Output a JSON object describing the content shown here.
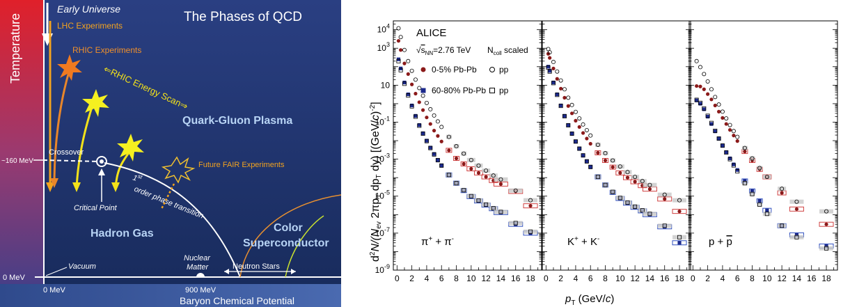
{
  "phase_diagram": {
    "title": "The Phases of QCD",
    "y_axis_label": "Temperature",
    "x_axis_label": "Baryon Chemical Potential",
    "labels": {
      "early_universe": "Early Universe",
      "lhc": "LHC Experiments",
      "rhic": "RHIC Experiments",
      "rhic_scan": "⇐RHIC Energy Scan⇒",
      "qgp": "Quark-Gluon Plasma",
      "temp_160": "~160 MeV",
      "crossover": "Crossover",
      "fair": "Future FAIR Experiments",
      "first_order_sup": "st",
      "first_order_a": "1",
      "first_order_b": "order phase transition",
      "critical_point": "Critical Point",
      "hadron_gas": "Hadron Gas",
      "color": "Color",
      "superconductor": "Superconductor",
      "nuclear": "Nuclear",
      "matter": "Matter",
      "neutron_stars": "Neutron Stars",
      "vacuum": "Vacuum",
      "zero_t": "0 MeV",
      "zero_mu": "0 MeV",
      "mu_900": "900 MeV"
    },
    "colors": {
      "lhc_arrow": "#f2a31f",
      "rhic_arrow": "#e8862a",
      "scan_arrow": "#f3e21a",
      "bg_top": "#2a3f82",
      "bg_bottom": "#17224a",
      "text_light": "#c8dcf5",
      "orange_text": "#f0902a"
    }
  },
  "chart_data": [
    {
      "type": "scatter",
      "panel_label_a": "π",
      "panel_label_a_sup": "+",
      "panel_label_mid": " + π",
      "panel_label_b_sup": "-",
      "ylabel": "d²N/(Nev 2πpT dpT dy) [(GeV/c)⁻²]",
      "xlabel": "pT (GeV/c)",
      "ylim": [
        1e-09,
        30000
      ],
      "xlim": [
        -0.5,
        19.5
      ],
      "yscale": "log",
      "series": [
        {
          "name": "0-5% Pb-Pb",
          "x": [
            0.2,
            0.5,
            1,
            1.5,
            2,
            2.5,
            3,
            3.5,
            4,
            4.5,
            5,
            5.5,
            6,
            7,
            8,
            9,
            10,
            11,
            12,
            13,
            14,
            16,
            18
          ],
          "y": [
            2500,
            800,
            150,
            40,
            11,
            3.5,
            1.2,
            0.45,
            0.18,
            0.08,
            0.035,
            0.018,
            0.009,
            0.003,
            0.0011,
            0.00055,
            0.0003,
            0.00018,
            0.00011,
            7e-05,
            4.5e-05,
            1.8e-05,
            3e-06
          ]
        },
        {
          "name": "60-80% Pb-Pb",
          "x": [
            0.2,
            0.5,
            1,
            1.5,
            2,
            2.5,
            3,
            3.5,
            4,
            4.5,
            5,
            5.5,
            6,
            7,
            8,
            9,
            10,
            11,
            12,
            13,
            14,
            16,
            18
          ],
          "y": [
            250,
            80,
            14,
            3.2,
            0.8,
            0.22,
            0.07,
            0.025,
            0.01,
            0.0042,
            0.0019,
            0.0009,
            0.00045,
            0.00014,
            5e-05,
            2e-05,
            9.5e-06,
            5.5e-06,
            3.3e-06,
            2.1e-06,
            1.3e-06,
            3e-07,
            1e-07
          ]
        },
        {
          "name": "pp 0-5%",
          "x": [
            0.2,
            0.5,
            1,
            1.5,
            2,
            2.5,
            3,
            3.5,
            4,
            4.5,
            5,
            5.5,
            6,
            7,
            8,
            9,
            10,
            11,
            12,
            13,
            14,
            16,
            18
          ],
          "y": [
            12000,
            4000,
            800,
            200,
            60,
            20,
            7,
            2.7,
            1.1,
            0.5,
            0.23,
            0.11,
            0.055,
            0.016,
            0.005,
            0.002,
            0.0009,
            0.00045,
            0.00024,
            0.00013,
            8e-05,
            2e-05,
            6e-06
          ]
        },
        {
          "name": "pp 60-80%",
          "x": [
            0.2,
            0.5,
            1,
            1.5,
            2,
            2.5,
            3,
            3.5,
            4,
            4.5,
            5,
            5.5,
            6,
            7,
            8,
            9,
            10,
            11,
            12,
            13,
            14,
            16,
            18
          ],
          "y": [
            200,
            65,
            12,
            2.8,
            0.72,
            0.2,
            0.065,
            0.024,
            0.0095,
            0.004,
            0.0018,
            0.00088,
            0.00045,
            0.00014,
            5e-05,
            2.1e-05,
            1e-05,
            5.8e-06,
            3.5e-06,
            2.2e-06,
            1.4e-06,
            3.5e-07,
            1.2e-07
          ]
        }
      ]
    },
    {
      "type": "scatter",
      "panel_label_a": "K",
      "panel_label_a_sup": "+",
      "panel_label_mid": " + K",
      "panel_label_b_sup": "-",
      "series": [
        {
          "name": "0-5% Pb-Pb",
          "x": [
            0.3,
            0.5,
            1,
            1.5,
            2,
            2.5,
            3,
            3.5,
            4,
            4.5,
            5,
            5.5,
            6,
            7,
            8,
            9,
            10,
            11,
            12,
            13,
            14,
            16,
            18
          ],
          "y": [
            500,
            300,
            80,
            22,
            6.5,
            2.1,
            0.75,
            0.3,
            0.12,
            0.055,
            0.026,
            0.013,
            0.0068,
            0.0022,
            0.00085,
            0.00037,
            0.00018,
            0.0001,
            6e-05,
            3.7e-05,
            2.4e-05,
            7e-06,
            1.5e-06
          ]
        },
        {
          "name": "60-80% Pb-Pb",
          "x": [
            0.3,
            0.5,
            1,
            1.5,
            2,
            2.5,
            3,
            3.5,
            4,
            4.5,
            5,
            5.5,
            6,
            7,
            8,
            9,
            10,
            11,
            12,
            13,
            14,
            16,
            18
          ],
          "y": [
            100,
            60,
            14,
            3.2,
            0.8,
            0.22,
            0.07,
            0.024,
            0.009,
            0.0037,
            0.0016,
            0.00075,
            0.00037,
            0.00011,
            4e-05,
            1.6e-05,
            7.5e-06,
            4.2e-06,
            2.5e-06,
            1.6e-06,
            1e-06,
            2.2e-07,
            3e-08
          ]
        },
        {
          "name": "pp 0-5%",
          "x": [
            0.3,
            0.5,
            1,
            1.5,
            2,
            2.5,
            3,
            3.5,
            4,
            4.5,
            5,
            5.5,
            6,
            7,
            8,
            9,
            10,
            11,
            12,
            13,
            14,
            16,
            18
          ],
          "y": [
            900,
            600,
            180,
            55,
            18,
            6,
            2.1,
            0.85,
            0.36,
            0.16,
            0.075,
            0.037,
            0.019,
            0.006,
            0.0021,
            0.00085,
            0.0004,
            0.0002,
            0.00011,
            6.5e-05,
            4e-05,
            1.2e-05,
            6e-06
          ]
        },
        {
          "name": "pp 60-80%",
          "x": [
            0.3,
            0.5,
            1,
            1.5,
            2,
            2.5,
            3,
            3.5,
            4,
            4.5,
            5,
            5.5,
            6,
            7,
            8,
            9,
            10,
            11,
            12,
            13,
            14,
            16,
            18
          ],
          "y": [
            90,
            55,
            13,
            3,
            0.76,
            0.21,
            0.068,
            0.024,
            0.009,
            0.0037,
            0.0016,
            0.00076,
            0.00038,
            0.00011,
            4e-05,
            1.7e-05,
            8e-06,
            4.5e-06,
            2.7e-06,
            1.7e-06,
            1.1e-06,
            2.5e-07,
            6e-08
          ]
        }
      ]
    },
    {
      "type": "scatter",
      "panel_label_a": "p + ",
      "panel_label_b": "p",
      "series": [
        {
          "name": "0-5% Pb-Pb",
          "x": [
            0.5,
            1,
            1.5,
            2,
            2.5,
            3,
            3.5,
            4,
            4.5,
            5,
            5.5,
            6,
            7,
            8,
            9,
            10,
            12,
            14,
            18
          ],
          "y": [
            9,
            8.5,
            6,
            3.3,
            1.7,
            0.8,
            0.37,
            0.17,
            0.08,
            0.038,
            0.019,
            0.0095,
            0.0026,
            0.00085,
            0.00028,
            0.00011,
            1.5e-05,
            2e-06,
            3e-07
          ]
        },
        {
          "name": "60-80% Pb-Pb",
          "x": [
            0.5,
            1,
            1.5,
            2,
            2.5,
            3,
            3.5,
            4,
            4.5,
            5,
            5.5,
            6,
            7,
            8,
            9,
            10,
            12,
            14,
            18
          ],
          "y": [
            1.5,
            1.0,
            0.5,
            0.2,
            0.08,
            0.032,
            0.013,
            0.0055,
            0.0024,
            0.0011,
            0.00052,
            0.00026,
            6.6e-05,
            1.9e-05,
            5.5e-06,
            1.7e-06,
            2.5e-07,
            8e-08,
            2e-08
          ]
        },
        {
          "name": "pp 0-5%",
          "x": [
            0.5,
            1,
            1.5,
            2,
            2.5,
            3,
            3.5,
            4,
            4.5,
            5,
            5.5,
            6,
            7,
            8,
            9,
            10,
            12,
            14,
            18
          ],
          "y": [
            200,
            95,
            40,
            16,
            6,
            2.3,
            0.9,
            0.37,
            0.16,
            0.07,
            0.033,
            0.016,
            0.004,
            0.0011,
            0.00033,
            0.00011,
            2.5e-05,
            5e-06,
            1.5e-06
          ]
        },
        {
          "name": "pp 60-80%",
          "x": [
            0.5,
            1,
            1.5,
            2,
            2.5,
            3,
            3.5,
            4,
            4.5,
            5,
            5.5,
            6,
            7,
            8,
            9,
            10,
            12,
            14,
            18
          ],
          "y": [
            1.6,
            1.1,
            0.55,
            0.22,
            0.09,
            0.034,
            0.013,
            0.0054,
            0.0023,
            0.001,
            0.00046,
            0.00022,
            5e-05,
            1.3e-05,
            3.5e-06,
            1.1e-06,
            2.5e-07,
            6e-08,
            1.5e-08
          ]
        }
      ]
    }
  ],
  "chart_common": {
    "ylabel_main": "d",
    "ylabel_sup2": "2",
    "ylabel_rest": "N/(N",
    "ylabel_ev": "ev",
    "ylabel_rest2": " 2πp",
    "ylabel_T1": "T",
    "ylabel_rest3": " dp",
    "ylabel_T2": "T",
    "ylabel_rest4": " dy) [(GeV/",
    "ylabel_c": "c",
    "ylabel_rest5": ")",
    "ylabel_sup_exp": "-2",
    "ylabel_end": "]",
    "xlabel_p": "p",
    "xlabel_T": "T",
    "xlabel_rest": " (GeV/",
    "xlabel_c": "c",
    "xlabel_end": ")",
    "y_ticks": [
      {
        "base": "10",
        "exp": "4",
        "v": 10000
      },
      {
        "base": "10",
        "exp": "3",
        "v": 1000
      },
      {
        "base": "10",
        "exp": "",
        "v": 10
      },
      {
        "base": "10",
        "exp": "-1",
        "v": 0.1
      },
      {
        "base": "10",
        "exp": "-3",
        "v": 0.001
      },
      {
        "base": "10",
        "exp": "-5",
        "v": 1e-05
      },
      {
        "base": "10",
        "exp": "-7",
        "v": 1e-07
      },
      {
        "base": "10",
        "exp": "-9",
        "v": 1e-09
      }
    ],
    "x_ticks": [
      "0",
      "2",
      "4",
      "6",
      "8",
      "10",
      "12",
      "14",
      "16",
      "18"
    ],
    "legend": {
      "alice": "ALICE",
      "energy_sqrt": "s",
      "energy_sub": "NN",
      "energy_rest": "=2.76 TeV",
      "ncoll_n": "N",
      "ncoll_sub": "coll",
      "ncoll_rest": " scaled",
      "central": "0-5% Pb-Pb",
      "peripheral": "60-80% Pb-Pb",
      "pp": "pp"
    },
    "colors": {
      "central": "#8b1a1a",
      "peripheral": "#1c2a8c",
      "sys_central": "#d04040",
      "sys_peripheral": "#3050c0",
      "sys_pp": "#c8c8c8"
    }
  }
}
